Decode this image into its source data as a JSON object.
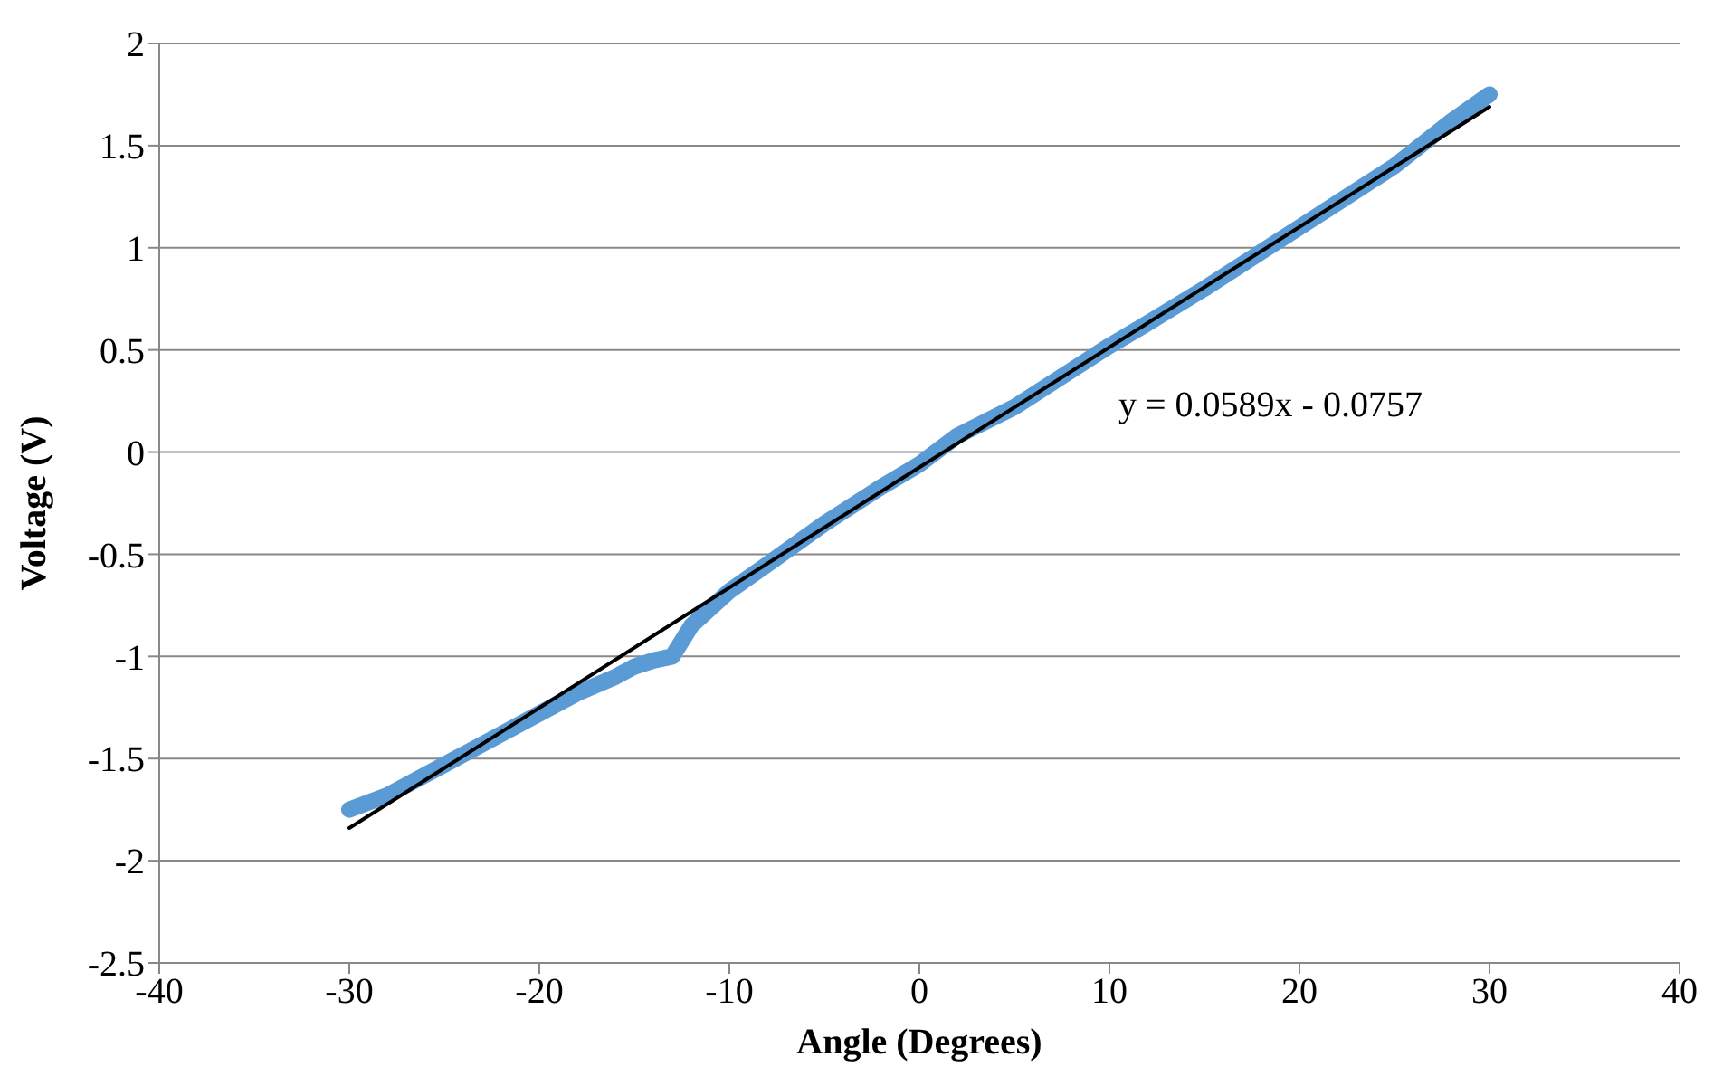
{
  "chart_data": {
    "type": "line",
    "xlabel": "Angle (Degrees)",
    "ylabel": "Voltage (V)",
    "xlim": [
      -40,
      40
    ],
    "xticks": [
      -40,
      -30,
      -20,
      -10,
      0,
      10,
      20,
      30,
      40
    ],
    "ylim": [
      -2.5,
      2
    ],
    "yticks": [
      -2.5,
      -2,
      -1.5,
      -1,
      -0.5,
      0,
      0.5,
      1,
      1.5,
      2
    ],
    "grid": "y",
    "marker": "none",
    "series": [
      {
        "color": "#5b9bd5",
        "x": [
          -30,
          -28,
          -25,
          -22,
          -20,
          -18,
          -16,
          -15,
          -14,
          -13,
          -12,
          -10,
          -8,
          -5,
          -2,
          0,
          2,
          5,
          8,
          10,
          12,
          15,
          18,
          20,
          22,
          25,
          28,
          30
        ],
        "values": [
          -1.75,
          -1.68,
          -1.53,
          -1.38,
          -1.28,
          -1.18,
          -1.1,
          -1.05,
          -1.02,
          -1.0,
          -0.85,
          -0.68,
          -0.55,
          -0.35,
          -0.17,
          -0.06,
          0.08,
          0.22,
          0.4,
          0.52,
          0.63,
          0.8,
          0.98,
          1.1,
          1.22,
          1.4,
          1.62,
          1.75
        ]
      },
      {
        "color": "#000000",
        "x": [
          -30,
          30
        ],
        "values": [
          -1.84,
          1.69
        ]
      }
    ],
    "annotations": [
      "y = 0.0589x - 0.0757"
    ]
  }
}
